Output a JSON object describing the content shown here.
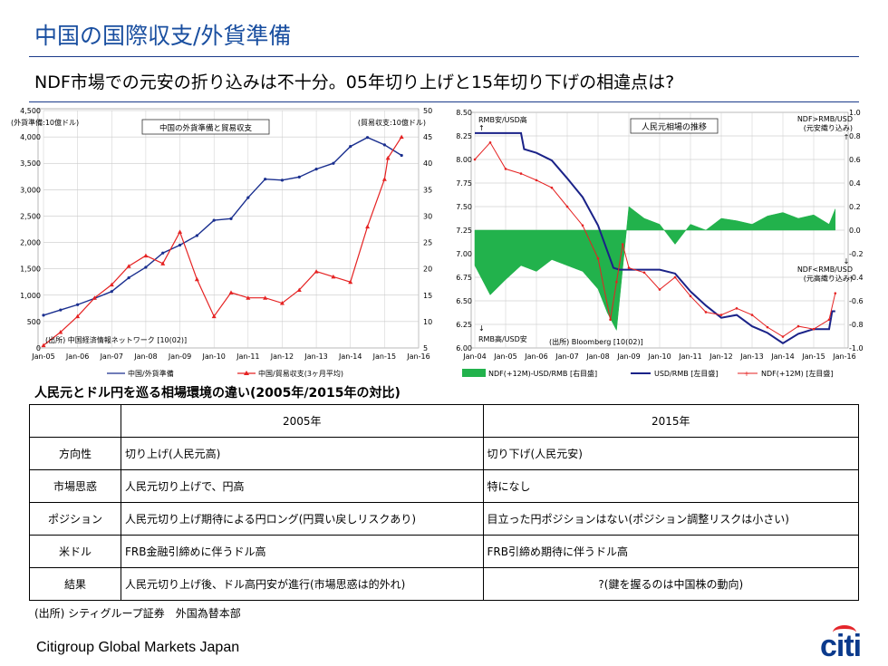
{
  "header": {
    "title": "中国の国際収支/外貨準備",
    "subtitle": "NDF市場での元安の折り込みは不十分。05年切り上げと15年切り下げの相違点は?"
  },
  "chart_data": [
    {
      "type": "line",
      "title": "中国の外貨準備と貿易収支",
      "ylabel_left": "(外貨準備:10億ドル)",
      "ylabel_right": "(貿易収支:10億ドル)",
      "ylim_left": [
        0,
        4500
      ],
      "ylim_right": [
        5,
        50
      ],
      "yticks_left": [
        "0",
        "500",
        "1,000",
        "1,500",
        "2,000",
        "2,500",
        "3,000",
        "3,500",
        "4,000",
        "4,500"
      ],
      "yticks_right": [
        "5",
        "10",
        "15",
        "20",
        "25",
        "30",
        "35",
        "40",
        "45",
        "50"
      ],
      "xticks": [
        "Jan-05",
        "Jan-06",
        "Jan-07",
        "Jan-08",
        "Jan-09",
        "Jan-10",
        "Jan-11",
        "Jan-12",
        "Jan-13",
        "Jan-14",
        "Jan-15",
        "Jan-16"
      ],
      "source": "(出所) 中国経済情報ネットワーク [10(02)]",
      "grid": true,
      "legend_position": "bottom",
      "colors": {
        "reserves": "#1a2f8f",
        "trade": "#e52222"
      },
      "series": [
        {
          "name": "中国/外貨準備",
          "axis": "left",
          "x": [
            2005.0,
            2005.5,
            2006.0,
            2006.5,
            2007.0,
            2007.5,
            2008.0,
            2008.5,
            2009.0,
            2009.5,
            2010.0,
            2010.5,
            2011.0,
            2011.5,
            2012.0,
            2012.5,
            2013.0,
            2013.5,
            2014.0,
            2014.5,
            2015.0,
            2015.5
          ],
          "values": [
            620,
            720,
            820,
            940,
            1070,
            1330,
            1530,
            1800,
            1950,
            2130,
            2420,
            2450,
            2850,
            3200,
            3180,
            3240,
            3390,
            3500,
            3820,
            3990,
            3850,
            3650
          ]
        },
        {
          "name": "中国/貿易収支(3ヶ月平均)",
          "axis": "right",
          "x": [
            2005.0,
            2005.5,
            2006.0,
            2006.5,
            2007.0,
            2007.5,
            2008.0,
            2008.5,
            2009.0,
            2009.5,
            2010.0,
            2010.5,
            2011.0,
            2011.5,
            2012.0,
            2012.5,
            2013.0,
            2013.5,
            2014.0,
            2014.5,
            2015.0,
            2015.1,
            2015.5
          ],
          "values": [
            5.5,
            8,
            11,
            14.5,
            17,
            20.5,
            22.5,
            21,
            27,
            18,
            11,
            15.5,
            14.5,
            14.5,
            13.5,
            16,
            19.5,
            18.5,
            17.5,
            28,
            37,
            41,
            45
          ]
        }
      ]
    },
    {
      "type": "line",
      "title": "人民元相場の推移",
      "ylim_left": [
        6.0,
        8.5
      ],
      "ylim_right": [
        -1.0,
        1.0
      ],
      "yticks_left": [
        "6.00",
        "6.25",
        "6.50",
        "6.75",
        "7.00",
        "7.25",
        "7.50",
        "7.75",
        "8.00",
        "8.25",
        "8.50"
      ],
      "yticks_right": [
        "-1.0",
        "-0.8",
        "-0.6",
        "-0.4",
        "-0.2",
        "0.0",
        "0.2",
        "0.4",
        "0.6",
        "0.8",
        "1.0"
      ],
      "xticks": [
        "Jan-04",
        "Jan-05",
        "Jan-06",
        "Jan-07",
        "Jan-08",
        "Jan-09",
        "Jan-10",
        "Jan-11",
        "Jan-12",
        "Jan-13",
        "Jan-14",
        "Jan-15",
        "Jan-16"
      ],
      "annotations": [
        "RMB安/USD高",
        "RMB高/USD安",
        "NDF>RMB/USD",
        "(元安織り込み)",
        "NDF<RMB/USD",
        "(元高織り込み)"
      ],
      "source": "(出所) Bloomberg [10(02)]",
      "grid": true,
      "legend_position": "bottom",
      "colors": {
        "spread": "#22b24c",
        "spot": "#1a2288",
        "ndf": "#e52222"
      },
      "series": [
        {
          "name": "NDF(+12M)-USD/RMB [右目盛]",
          "axis": "right",
          "x": [
            2004.0,
            2004.5,
            2005.0,
            2005.5,
            2006.0,
            2006.5,
            2007.0,
            2007.5,
            2008.0,
            2008.3,
            2008.6,
            2009.0,
            2009.5,
            2010.0,
            2010.5,
            2011.0,
            2011.5,
            2012.0,
            2012.5,
            2013.0,
            2013.5,
            2014.0,
            2014.5,
            2015.0,
            2015.5,
            2015.7
          ],
          "values": [
            -0.3,
            -0.55,
            -0.42,
            -0.3,
            -0.35,
            -0.25,
            -0.3,
            -0.35,
            -0.5,
            -0.7,
            -0.85,
            0.2,
            0.1,
            0.05,
            -0.12,
            0.05,
            0.0,
            0.1,
            0.08,
            0.05,
            0.12,
            0.15,
            0.1,
            0.13,
            0.05,
            0.18
          ]
        },
        {
          "name": "USD/RMB [左目盛]",
          "axis": "left",
          "x": [
            2004.0,
            2005.5,
            2005.6,
            2006.0,
            2006.5,
            2007.0,
            2007.5,
            2008.0,
            2008.5,
            2008.7,
            2009.0,
            2009.5,
            2010.0,
            2010.5,
            2011.0,
            2011.5,
            2012.0,
            2012.5,
            2013.0,
            2013.5,
            2014.0,
            2014.5,
            2015.0,
            2015.5,
            2015.6,
            2015.7
          ],
          "values": [
            8.28,
            8.28,
            8.11,
            8.07,
            7.99,
            7.8,
            7.6,
            7.3,
            6.85,
            6.83,
            6.83,
            6.83,
            6.83,
            6.79,
            6.6,
            6.45,
            6.32,
            6.35,
            6.23,
            6.16,
            6.05,
            6.15,
            6.2,
            6.2,
            6.39,
            6.39
          ]
        },
        {
          "name": "NDF(+12M) [左目盛]",
          "axis": "left",
          "x": [
            2004.0,
            2004.5,
            2005.0,
            2005.5,
            2006.0,
            2006.5,
            2007.0,
            2007.5,
            2008.0,
            2008.4,
            2008.6,
            2008.8,
            2009.0,
            2009.5,
            2010.0,
            2010.5,
            2011.0,
            2011.5,
            2012.0,
            2012.5,
            2013.0,
            2013.5,
            2014.0,
            2014.5,
            2015.0,
            2015.5,
            2015.7
          ],
          "values": [
            8.0,
            8.18,
            7.9,
            7.85,
            7.78,
            7.7,
            7.5,
            7.3,
            6.95,
            6.3,
            6.7,
            7.1,
            6.85,
            6.8,
            6.62,
            6.75,
            6.55,
            6.38,
            6.35,
            6.42,
            6.35,
            6.22,
            6.12,
            6.23,
            6.2,
            6.3,
            6.58
          ]
        }
      ]
    }
  ],
  "comparison": {
    "heading": "人民元とドル円を巡る相場環境の違い(2005年/2015年の対比)",
    "col_2005": "2005年",
    "col_2015": "2015年",
    "rows": [
      {
        "label": "方向性",
        "y2005": "切り上げ(人民元高)",
        "y2015": "切り下げ(人民元安)"
      },
      {
        "label": "市場思惑",
        "y2005": "人民元切り上げで、円高",
        "y2015": "特になし"
      },
      {
        "label": "ポジション",
        "y2005": "人民元切り上げ期待による円ロング(円買い戻しリスクあり)",
        "y2015": "目立った円ポジションはない(ポジション調整リスクは小さい)"
      },
      {
        "label": "米ドル",
        "y2005": "FRB金融引締めに伴うドル高",
        "y2015": "FRB引締め期待に伴うドル高"
      },
      {
        "label": "結果",
        "y2005": "人民元切り上げ後、ドル高円安が進行(市場思惑は的外れ)",
        "y2015": "?(鍵を握るのは中国株の動向)"
      }
    ]
  },
  "footer": {
    "source": "(出所) シティグループ証券　外国為替本部",
    "company": "Citigroup Global Markets Japan",
    "logo_text": "citi"
  }
}
